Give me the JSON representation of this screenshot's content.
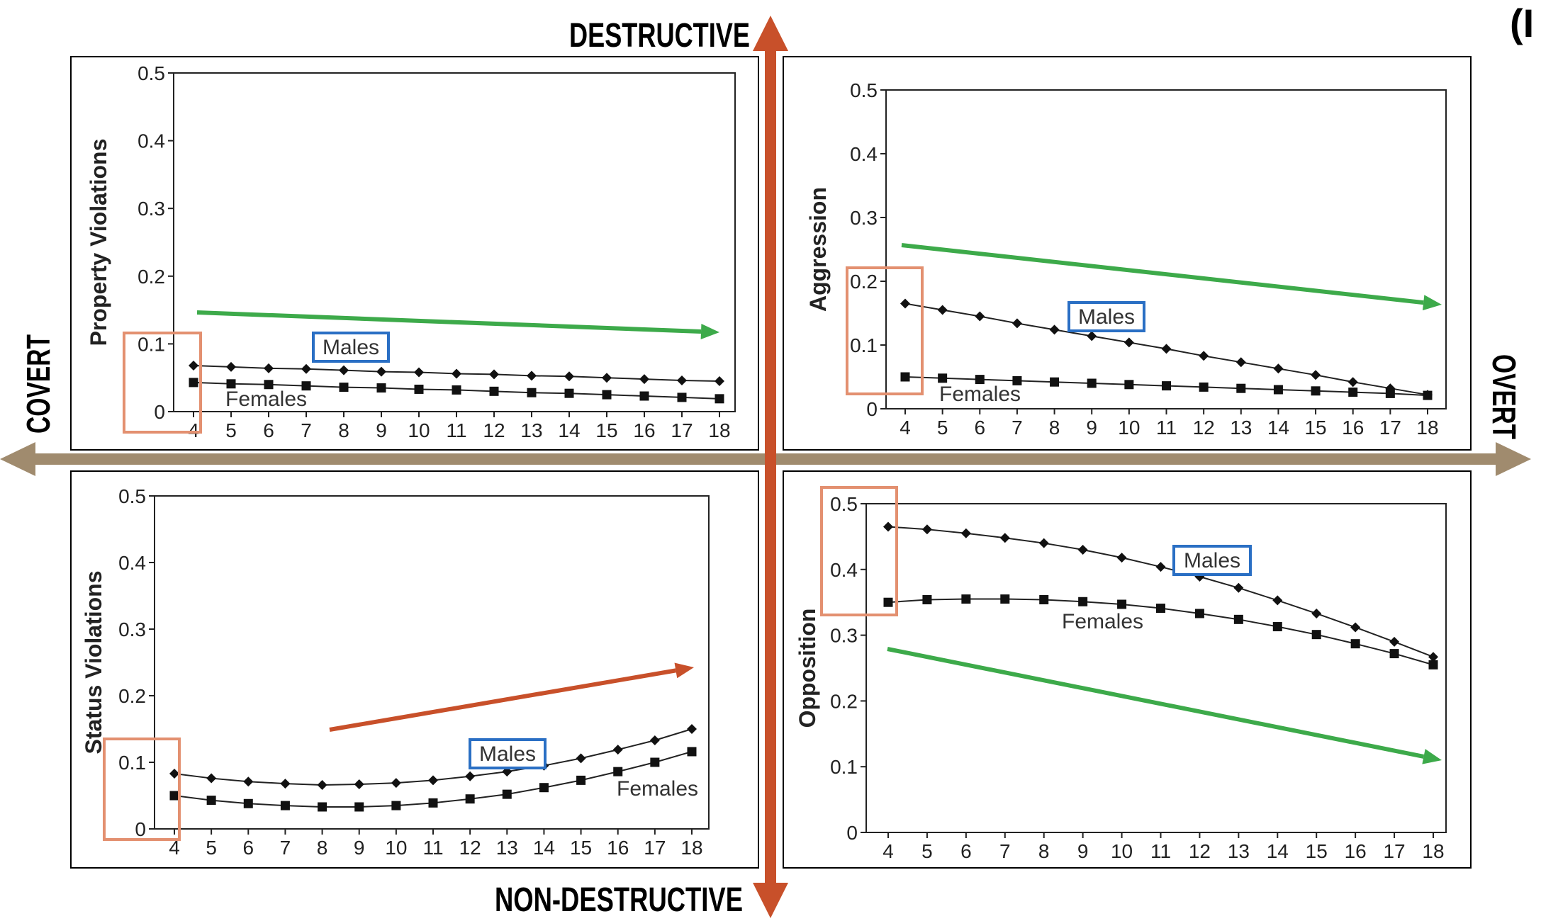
{
  "labels": {
    "top": "DESTRUCTIVE",
    "bottom": "NON-DESTRUCTIVE",
    "left": "COVERT",
    "right": "OVERT",
    "corner": "(I"
  },
  "colors": {
    "quadrant_axis": "#a08b6e",
    "vertical_axis": "#c8502a",
    "trend_down": "#3daa4a",
    "trend_up": "#c8502a",
    "highlight_box": "#e39070",
    "males_box": "#2a6fc4",
    "series_line": "#222222"
  },
  "chart_data": [
    {
      "type": "line",
      "quadrant": "top-left",
      "ylabel": "Property Violations",
      "ylim": [
        0,
        0.5
      ],
      "yticks": [
        "0",
        "0.1",
        "0.2",
        "0.3",
        "0.4",
        "0.5"
      ],
      "x": [
        4,
        5,
        6,
        7,
        8,
        9,
        10,
        11,
        12,
        13,
        14,
        15,
        16,
        17,
        18
      ],
      "series": [
        {
          "name": "Males",
          "marker": "diamond",
          "values": [
            0.068,
            0.066,
            0.064,
            0.063,
            0.061,
            0.059,
            0.058,
            0.056,
            0.055,
            0.053,
            0.052,
            0.05,
            0.048,
            0.046,
            0.045
          ]
        },
        {
          "name": "Females",
          "marker": "square",
          "values": [
            0.043,
            0.041,
            0.04,
            0.038,
            0.036,
            0.035,
            0.033,
            0.032,
            0.03,
            0.028,
            0.027,
            0.025,
            0.023,
            0.021,
            0.019
          ]
        }
      ],
      "trend": "down"
    },
    {
      "type": "line",
      "quadrant": "top-right",
      "ylabel": "Aggression",
      "ylim": [
        0,
        0.5
      ],
      "yticks": [
        "0",
        "0.1",
        "0.2",
        "0.3",
        "0.4",
        "0.5"
      ],
      "x": [
        4,
        5,
        6,
        7,
        8,
        9,
        10,
        11,
        12,
        13,
        14,
        15,
        16,
        17,
        18
      ],
      "series": [
        {
          "name": "Males",
          "marker": "diamond",
          "values": [
            0.165,
            0.155,
            0.145,
            0.134,
            0.124,
            0.114,
            0.104,
            0.094,
            0.083,
            0.073,
            0.063,
            0.053,
            0.042,
            0.032,
            0.022
          ]
        },
        {
          "name": "Females",
          "marker": "square",
          "values": [
            0.05,
            0.048,
            0.046,
            0.044,
            0.042,
            0.04,
            0.038,
            0.036,
            0.034,
            0.032,
            0.03,
            0.028,
            0.026,
            0.024,
            0.021
          ]
        }
      ],
      "trend": "down"
    },
    {
      "type": "line",
      "quadrant": "bottom-left",
      "ylabel": "Status Violations",
      "ylim": [
        0,
        0.5
      ],
      "yticks": [
        "0",
        "0.1",
        "0.2",
        "0.3",
        "0.4",
        "0.5"
      ],
      "x": [
        4,
        5,
        6,
        7,
        8,
        9,
        10,
        11,
        12,
        13,
        14,
        15,
        16,
        17,
        18
      ],
      "series": [
        {
          "name": "Males",
          "marker": "diamond",
          "values": [
            0.083,
            0.076,
            0.071,
            0.068,
            0.066,
            0.067,
            0.069,
            0.073,
            0.079,
            0.086,
            0.095,
            0.106,
            0.119,
            0.133,
            0.15
          ]
        },
        {
          "name": "Females",
          "marker": "square",
          "values": [
            0.05,
            0.043,
            0.038,
            0.035,
            0.033,
            0.033,
            0.035,
            0.039,
            0.045,
            0.052,
            0.062,
            0.073,
            0.086,
            0.1,
            0.116
          ]
        }
      ],
      "trend": "up"
    },
    {
      "type": "line",
      "quadrant": "bottom-right",
      "ylabel": "Opposition",
      "ylim": [
        0,
        0.5
      ],
      "yticks": [
        "0",
        "0.1",
        "0.2",
        "0.3",
        "0.4",
        "0.5"
      ],
      "x": [
        4,
        5,
        6,
        7,
        8,
        9,
        10,
        11,
        12,
        13,
        14,
        15,
        16,
        17,
        18
      ],
      "series": [
        {
          "name": "Males",
          "marker": "diamond",
          "values": [
            0.465,
            0.461,
            0.455,
            0.448,
            0.44,
            0.43,
            0.418,
            0.404,
            0.389,
            0.372,
            0.353,
            0.333,
            0.312,
            0.29,
            0.267
          ]
        },
        {
          "name": "Females",
          "marker": "square",
          "values": [
            0.35,
            0.354,
            0.355,
            0.355,
            0.354,
            0.351,
            0.347,
            0.341,
            0.333,
            0.324,
            0.313,
            0.301,
            0.287,
            0.272,
            0.255
          ]
        }
      ],
      "trend": "down"
    }
  ]
}
